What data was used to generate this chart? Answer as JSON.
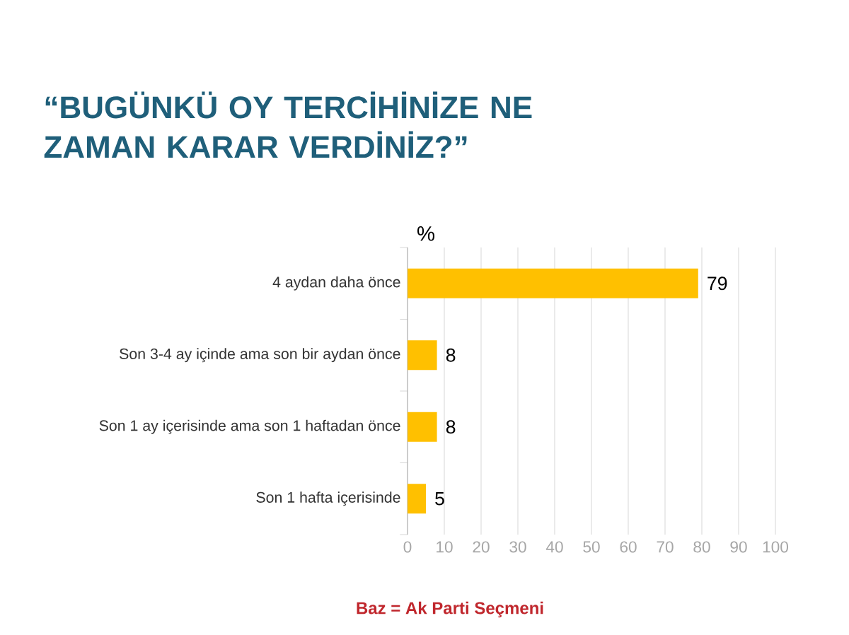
{
  "chart_data": {
    "type": "bar",
    "orientation": "horizontal",
    "title": "“BUGÜNKÜ OY TERCİHİNİZE NE ZAMAN KARAR VERDİNİZ?”",
    "xlabel": "%",
    "categories": [
      "4 aydan daha önce",
      "Son 3-4 ay içinde ama son bir aydan önce",
      "Son 1 ay içerisinde ama son 1 haftadan önce",
      "Son 1 hafta içerisinde"
    ],
    "values": [
      79,
      8,
      8,
      5
    ],
    "color": "#ffc000",
    "xlim": [
      0,
      100
    ],
    "xticks": [
      0,
      10,
      20,
      30,
      40,
      50,
      60,
      70,
      80,
      90,
      100
    ],
    "grid": "x",
    "data_labels": true,
    "annotations": [
      "Baz = Ak Parti Seçmeni"
    ]
  }
}
